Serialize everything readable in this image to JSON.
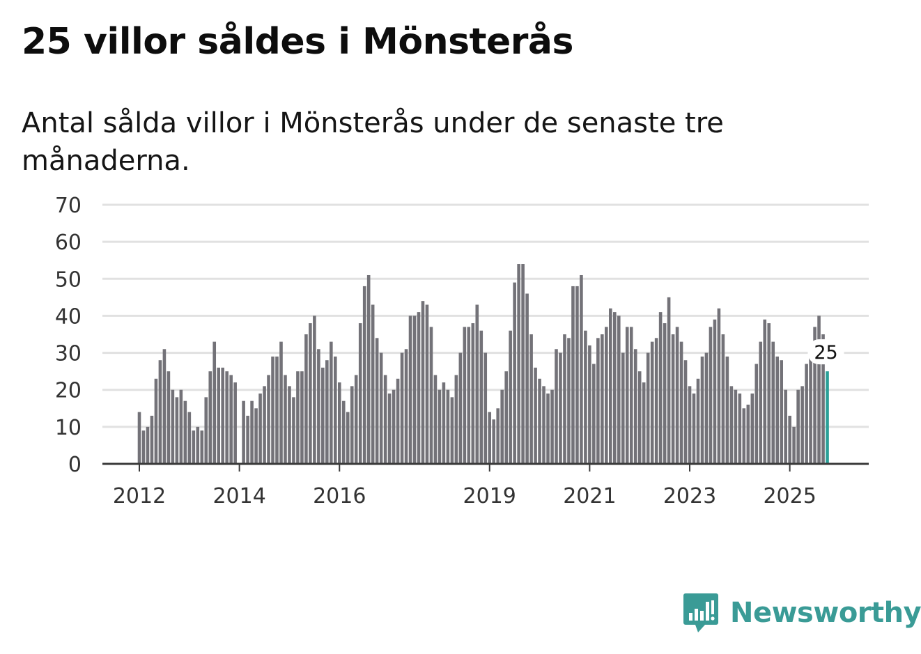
{
  "title": "25 villor såldes i Mönsterås",
  "subtitle": "Antal sålda villor i Mönsterås under de senaste tre månaderna.",
  "brand": {
    "name": "Newsworthy",
    "color": "#3a9b96",
    "icon": "newsworthy-chart-bubble-icon"
  },
  "colors": {
    "bar": "#737278",
    "highlight": "#2aa098",
    "grid": "#e1e1e1",
    "axis": "#3a3a3a"
  },
  "chart_data": {
    "type": "bar",
    "title": "25 villor såldes i Mönsterås",
    "xlabel": "",
    "ylabel": "",
    "ylim": [
      0,
      70
    ],
    "yticks": [
      "0",
      "10",
      "20",
      "30",
      "40",
      "50",
      "60",
      "70"
    ],
    "x_start": "2012-01",
    "xtick_labels": [
      {
        "label": "2012",
        "month_index": 0
      },
      {
        "label": "2014",
        "month_index": 24
      },
      {
        "label": "2016",
        "month_index": 48
      },
      {
        "label": "2019",
        "month_index": 84
      },
      {
        "label": "2021",
        "month_index": 108
      },
      {
        "label": "2023",
        "month_index": 132
      },
      {
        "label": "2025",
        "month_index": 156
      }
    ],
    "values": [
      14,
      9,
      10,
      13,
      23,
      28,
      31,
      25,
      20,
      18,
      20,
      17,
      14,
      9,
      10,
      9,
      18,
      25,
      33,
      26,
      26,
      25,
      24,
      22,
      0,
      17,
      13,
      17,
      15,
      19,
      21,
      24,
      29,
      29,
      33,
      24,
      21,
      18,
      25,
      25,
      35,
      38,
      40,
      31,
      26,
      28,
      33,
      29,
      22,
      17,
      14,
      21,
      24,
      38,
      48,
      51,
      43,
      34,
      30,
      24,
      19,
      20,
      23,
      30,
      31,
      40,
      40,
      41,
      44,
      43,
      37,
      24,
      20,
      22,
      20,
      18,
      24,
      30,
      37,
      37,
      38,
      43,
      36,
      30,
      14,
      12,
      15,
      20,
      25,
      36,
      49,
      54,
      54,
      46,
      35,
      26,
      23,
      21,
      19,
      20,
      31,
      30,
      35,
      34,
      48,
      48,
      51,
      36,
      32,
      27,
      34,
      35,
      37,
      42,
      41,
      40,
      30,
      37,
      37,
      31,
      25,
      22,
      30,
      33,
      34,
      41,
      38,
      45,
      35,
      37,
      33,
      28,
      21,
      19,
      23,
      29,
      30,
      37,
      39,
      42,
      35,
      29,
      21,
      20,
      19,
      15,
      16,
      19,
      27,
      33,
      39,
      38,
      33,
      29,
      28,
      20,
      13,
      10,
      20,
      21,
      27,
      31,
      37,
      40,
      35,
      25
    ],
    "highlight_last": true,
    "annotation": {
      "text": "25",
      "target": "last-bar"
    }
  }
}
